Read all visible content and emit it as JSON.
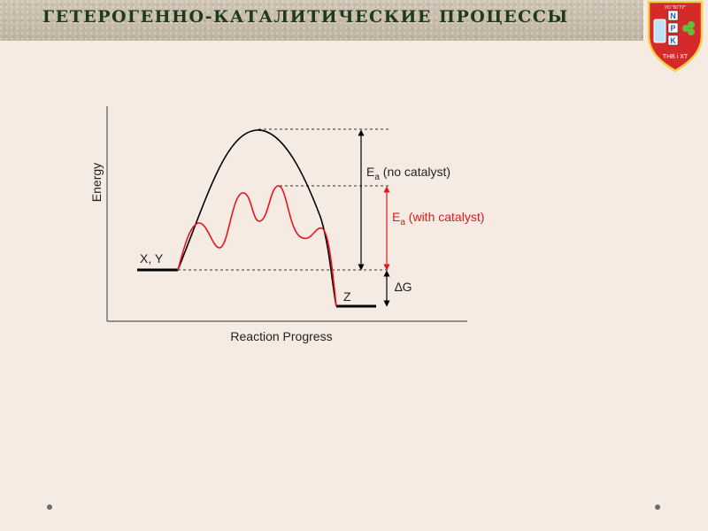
{
  "header": {
    "title": "ГЕТЕРОГЕННО-КАТАЛИТИЧЕСКИЕ ПРОЦЕССЫ"
  },
  "logo": {
    "top_text": "УО \"БГТУ\"",
    "letters": [
      "N",
      "P",
      "K"
    ],
    "bottom_text": "ТНВ і ХТ"
  },
  "diagram": {
    "axis_y_label": "Energy",
    "axis_x_label": "Reaction Progress",
    "reactants_label": "X, Y",
    "product_label": "Z",
    "ea_no_catalyst": {
      "main": "E",
      "sub": "a",
      "rest": " (no catalyst)"
    },
    "ea_with_catalyst": {
      "main": "E",
      "sub": "a",
      "rest": " (with catalyst)"
    },
    "delta_g": "∆G",
    "colors": {
      "uncatalyzed": "#000000",
      "catalyzed": "#e3161f"
    }
  },
  "navigation": {
    "prev_icon": "dot-icon",
    "next_icon": "dot-icon"
  }
}
